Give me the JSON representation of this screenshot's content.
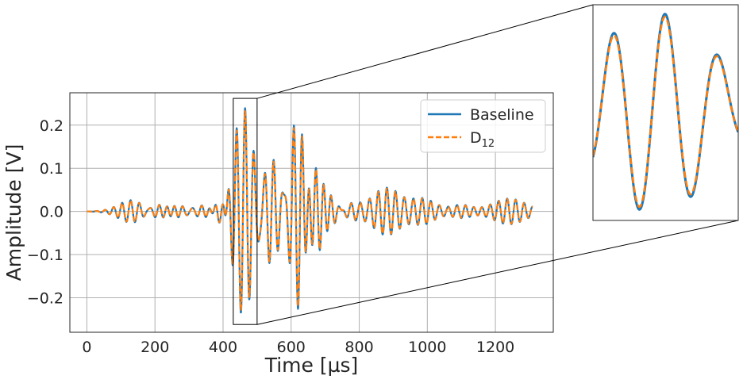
{
  "chart_data": {
    "type": "line",
    "title": "",
    "xlabel": "Time [µs]",
    "ylabel": "Amplitude [V]",
    "xlim": [
      -50,
      1370
    ],
    "ylim": [
      -0.28,
      0.275
    ],
    "xticks": [
      0,
      200,
      400,
      600,
      800,
      1000,
      1200
    ],
    "xtick_labels": [
      "0",
      "200",
      "400",
      "600",
      "800",
      "1000",
      "1200"
    ],
    "yticks": [
      -0.2,
      -0.1,
      0.0,
      0.1,
      0.2
    ],
    "ytick_labels": [
      "−0.2",
      "−0.1",
      "0.0",
      "0.1",
      "0.2"
    ],
    "grid": true,
    "legend_position": "top-right",
    "series": [
      {
        "name": "Baseline",
        "name_base": "Baseline",
        "name_sub": "",
        "color": "#1f77b4",
        "style": "solid",
        "packets": [
          {
            "center": 140,
            "width": 60,
            "amp": 0.03
          },
          {
            "center": 210,
            "width": 55,
            "amp": 0.026
          },
          {
            "center": 260,
            "width": 45,
            "amp": 0.02
          },
          {
            "center": 345,
            "width": 45,
            "amp": 0.015
          },
          {
            "center": 460,
            "width": 45,
            "amp": 0.245
          },
          {
            "center": 400,
            "width": 28,
            "amp": 0.06
          },
          {
            "center": 540,
            "width": 40,
            "amp": 0.13
          },
          {
            "center": 620,
            "width": 32,
            "amp": 0.24
          },
          {
            "center": 670,
            "width": 35,
            "amp": 0.12
          },
          {
            "center": 710,
            "width": 35,
            "amp": 0.045
          },
          {
            "center": 780,
            "width": 45,
            "amp": 0.02
          },
          {
            "center": 880,
            "width": 60,
            "amp": 0.055
          },
          {
            "center": 985,
            "width": 55,
            "amp": 0.03
          },
          {
            "center": 1100,
            "width": 45,
            "amp": 0.015
          },
          {
            "center": 1240,
            "width": 70,
            "amp": 0.03
          }
        ],
        "frequency_mhz": 0.04
      },
      {
        "name": "D12",
        "name_base": "D",
        "name_sub": "12",
        "color": "#ff7f0e",
        "style": "dashed",
        "packets": [
          {
            "center": 140,
            "width": 60,
            "amp": 0.029
          },
          {
            "center": 210,
            "width": 55,
            "amp": 0.025
          },
          {
            "center": 260,
            "width": 45,
            "amp": 0.019
          },
          {
            "center": 345,
            "width": 45,
            "amp": 0.014
          },
          {
            "center": 460,
            "width": 45,
            "amp": 0.238
          },
          {
            "center": 400,
            "width": 28,
            "amp": 0.058
          },
          {
            "center": 540,
            "width": 40,
            "amp": 0.126
          },
          {
            "center": 620,
            "width": 32,
            "amp": 0.233
          },
          {
            "center": 670,
            "width": 35,
            "amp": 0.116
          },
          {
            "center": 710,
            "width": 35,
            "amp": 0.043
          },
          {
            "center": 780,
            "width": 45,
            "amp": 0.019
          },
          {
            "center": 880,
            "width": 60,
            "amp": 0.053
          },
          {
            "center": 985,
            "width": 55,
            "amp": 0.029
          },
          {
            "center": 1100,
            "width": 45,
            "amp": 0.014
          },
          {
            "center": 1240,
            "width": 70,
            "amp": 0.029
          }
        ],
        "frequency_mhz": 0.04
      }
    ],
    "inset": {
      "xlim": [
        430,
        500
      ],
      "ylim": [
        -0.262,
        0.262
      ],
      "description": "zoomed view"
    }
  }
}
